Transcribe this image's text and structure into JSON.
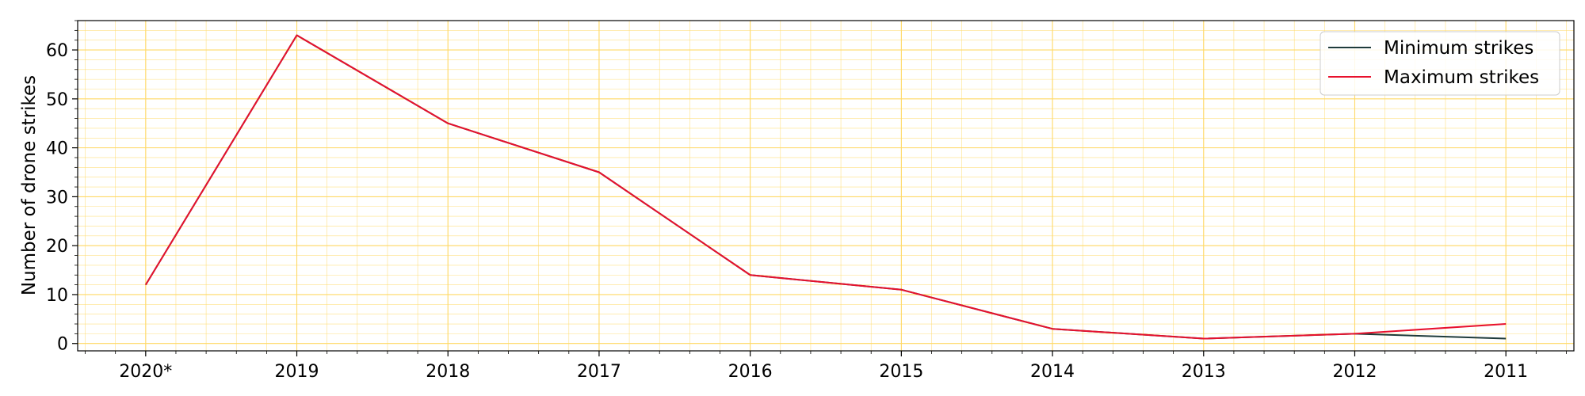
{
  "chart_data": {
    "type": "line",
    "title": "",
    "xlabel": "",
    "ylabel": "Number of drone strikes",
    "categories": [
      "2020*",
      "2019",
      "2018",
      "2017",
      "2016",
      "2015",
      "2014",
      "2013",
      "2012",
      "2011"
    ],
    "series": [
      {
        "name": "Minimum strikes",
        "color": "#1f3b3b",
        "values": [
          12,
          63,
          45,
          35,
          14,
          11,
          3,
          1,
          2,
          1
        ]
      },
      {
        "name": "Maximum strikes",
        "color": "#e8112d",
        "values": [
          12,
          63,
          45,
          35,
          14,
          11,
          3,
          1,
          2,
          4
        ]
      }
    ],
    "ylim": [
      -1.5,
      66
    ],
    "yticks": [
      0,
      10,
      20,
      30,
      40,
      50,
      60
    ],
    "grid": true,
    "minor_grid": true,
    "grid_color": "#ffd966",
    "legend_position": "top-right"
  }
}
